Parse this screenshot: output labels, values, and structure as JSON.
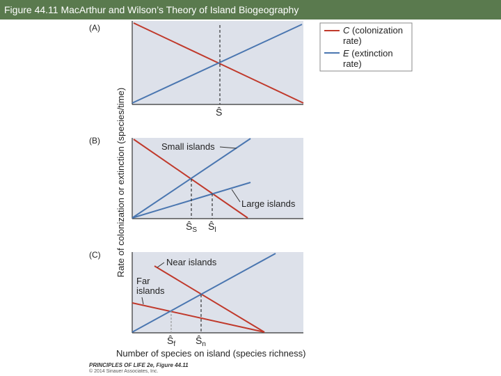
{
  "header": {
    "title": "Figure 44.11  MacArthur and Wilson’s Theory of Island Biogeography"
  },
  "colors": {
    "colonization": "#c0392b",
    "extinction": "#4a76b0",
    "panel_bg": "#dde1ea",
    "title_bar": "#5a7a4e"
  },
  "legend": {
    "c_letter": "C",
    "c_text1": "(colonization",
    "c_text2": "rate)",
    "e_letter": "E",
    "e_text1": "(extinction",
    "e_text2": "rate)"
  },
  "y_axis_label": "Rate of colonization or extinction (species/time)",
  "x_axis_label": "Number of species on island (species richness)",
  "panels": {
    "a": {
      "label": "(A)",
      "s_hat": "Ŝ"
    },
    "b": {
      "label": "(B)",
      "small_islands": "Small islands",
      "large_islands": "Large islands",
      "s_hat_s": "Ŝ",
      "sub_s": "S",
      "s_hat_l": "Ŝ",
      "sub_l": "l"
    },
    "c": {
      "label": "(C)",
      "near_islands": "Near islands",
      "far_islands_1": "Far",
      "far_islands_2": "islands",
      "s_hat_f": "Ŝ",
      "sub_f": "f",
      "s_hat_n": "Ŝ",
      "sub_n": "n"
    }
  },
  "credit": {
    "line1": "PRINCIPLES OF LIFE 2e, Figure 44.11",
    "line2": "© 2014 Sinauer Associates, Inc."
  }
}
